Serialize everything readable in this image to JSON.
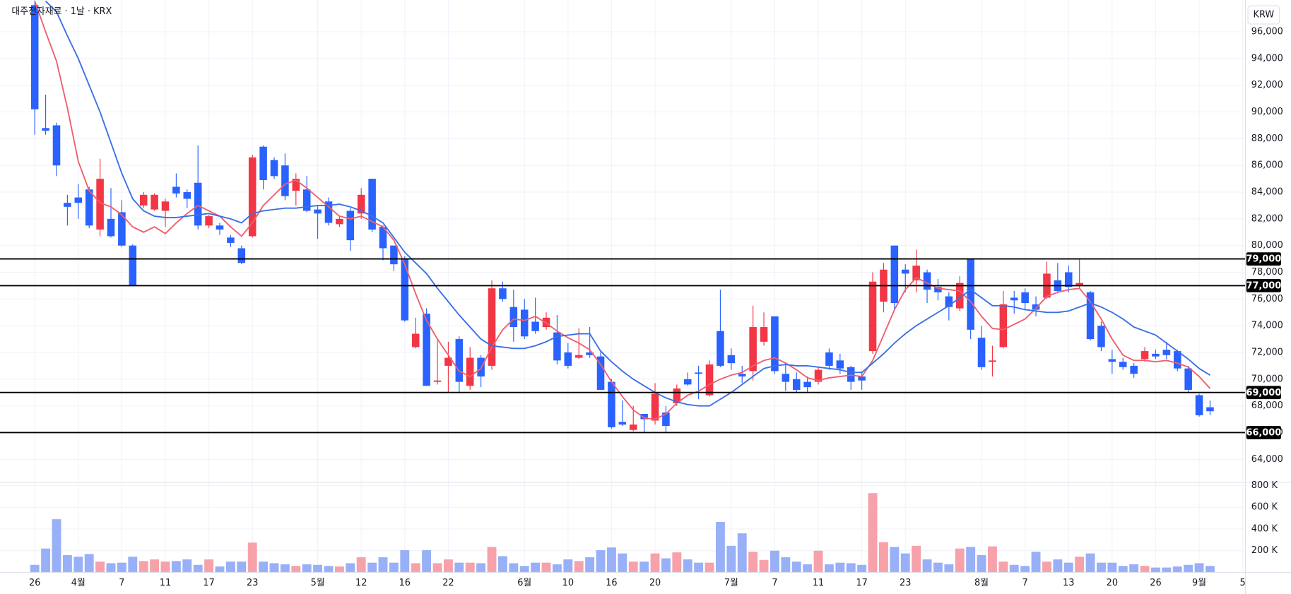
{
  "chart_data": {
    "type": "candlestick",
    "title": "대주전자재료 · 1날 · KRX",
    "currency": "KRW",
    "up_color": "#f23645",
    "down_color": "#2962ff",
    "volume_up_color": "#f7a1aa",
    "volume_down_color": "#98b0f7",
    "grid": true,
    "categories": [
      "26",
      null,
      null,
      null,
      "4월",
      null,
      null,
      null,
      "7",
      null,
      null,
      null,
      "11",
      null,
      null,
      null,
      "17",
      null,
      null,
      null,
      "23",
      null,
      null,
      null,
      null,
      null,
      "5월",
      null,
      null,
      null,
      "12",
      null,
      null,
      null,
      "16",
      null,
      null,
      null,
      "22",
      null,
      null,
      null,
      null,
      null,
      null,
      "6월",
      null,
      null,
      null,
      "10",
      null,
      null,
      null,
      "16",
      null,
      null,
      null,
      "20",
      null,
      null,
      null,
      null,
      null,
      null,
      "7월",
      null,
      null,
      null,
      "7",
      null,
      null,
      null,
      "11",
      null,
      null,
      null,
      "17",
      null,
      null,
      null,
      "23",
      null,
      null,
      null,
      null,
      null,
      null,
      "8월",
      null,
      null,
      null,
      "7",
      null,
      null,
      null,
      "13",
      null,
      null,
      null,
      "20",
      null,
      null,
      null,
      "26",
      null,
      null,
      null,
      "9월",
      null,
      null,
      null,
      "5"
    ],
    "open": [
      98000,
      88800,
      89000,
      83200,
      83600,
      84200,
      81200,
      82000,
      82500,
      80000,
      83000,
      82700,
      82600,
      84400,
      84000,
      84700,
      81500,
      81500,
      80600,
      79800,
      80700,
      87400,
      86400,
      86000,
      84100,
      84200,
      82700,
      83300,
      81600,
      82600,
      82400,
      85000,
      81400,
      80000,
      79000,
      72400,
      74900,
      69800,
      71000,
      73000,
      69500,
      71600,
      71000,
      76800,
      75400,
      75200,
      74300,
      73900,
      73500,
      72000,
      71600,
      72000,
      71700,
      69800,
      66800,
      66200,
      67400,
      66900,
      67500,
      68200,
      70000,
      70500,
      68800,
      73600,
      71800,
      70400,
      70600,
      72800,
      74700,
      70400,
      70000,
      69800,
      69800,
      72000,
      71400,
      70900,
      70200,
      72100,
      75800,
      80000,
      78200,
      77400,
      78000,
      76900,
      76200,
      75300,
      79000,
      73100,
      71300,
      72400,
      76100,
      76500,
      75600,
      76100,
      77400,
      78000,
      77000,
      76500,
      74000,
      71500,
      71300,
      71000,
      71500,
      71900,
      72200,
      72100,
      70800,
      68800,
      67900,
      null,
      null,
      null
    ],
    "high": [
      98350,
      91300,
      89200,
      83800,
      84600,
      84400,
      86500,
      84300,
      83400,
      80100,
      84000,
      83900,
      83500,
      85400,
      84200,
      87500,
      82300,
      81700,
      80800,
      80000,
      86800,
      87500,
      86600,
      86900,
      85400,
      85200,
      83000,
      83600,
      82200,
      82800,
      84300,
      85000,
      81500,
      80000,
      79200,
      74600,
      75300,
      72900,
      72800,
      73200,
      72400,
      71800,
      77400,
      77300,
      76700,
      76000,
      76100,
      75000,
      74800,
      72700,
      73800,
      73900,
      72000,
      70000,
      68400,
      68000,
      67400,
      69700,
      68000,
      69600,
      70500,
      71000,
      71400,
      76700,
      72300,
      71000,
      75500,
      75000,
      74700,
      71200,
      70500,
      70200,
      70900,
      72300,
      71900,
      71000,
      70600,
      78000,
      78700,
      80000,
      78600,
      79700,
      78200,
      77500,
      76500,
      77700,
      79000,
      74000,
      72500,
      76600,
      76600,
      76800,
      76200,
      78800,
      78700,
      78500,
      79000,
      76600,
      74300,
      72200,
      71600,
      71200,
      72400,
      72200,
      72800,
      72200,
      71000,
      68900,
      68400,
      null,
      null,
      null
    ],
    "low": [
      88300,
      88300,
      85200,
      81500,
      82000,
      81300,
      80700,
      80600,
      79900,
      77000,
      82800,
      82600,
      81400,
      83600,
      82800,
      81200,
      81300,
      80800,
      79900,
      78600,
      80600,
      84200,
      85000,
      83400,
      83000,
      82500,
      80500,
      81500,
      81400,
      79600,
      82000,
      81000,
      78900,
      78100,
      74300,
      72300,
      69500,
      69600,
      69000,
      69000,
      69200,
      69400,
      70700,
      75800,
      72800,
      73000,
      73400,
      73700,
      71100,
      70800,
      71500,
      71600,
      69200,
      66300,
      66500,
      66100,
      66000,
      66600,
      66000,
      68000,
      69500,
      68500,
      68700,
      70900,
      70700,
      69700,
      69900,
      72500,
      70400,
      69100,
      69000,
      69000,
      69600,
      70700,
      70400,
      69200,
      69200,
      71900,
      75000,
      75200,
      76500,
      76500,
      75700,
      75900,
      74400,
      75100,
      73000,
      70700,
      70200,
      72300,
      74900,
      75200,
      74700,
      76000,
      76500,
      76500,
      76800,
      72900,
      72100,
      70400,
      70700,
      70100,
      71300,
      71500,
      71500,
      70600,
      69000,
      67200,
      67300,
      null,
      null,
      null
    ],
    "close": [
      90200,
      88600,
      86000,
      82900,
      83200,
      81500,
      85000,
      80700,
      80000,
      77000,
      83800,
      83800,
      83300,
      83900,
      83500,
      81500,
      82200,
      81200,
      80200,
      78700,
      86600,
      84900,
      85200,
      83700,
      85000,
      82600,
      82400,
      81700,
      82000,
      80400,
      83800,
      81200,
      79800,
      78600,
      74400,
      73400,
      69500,
      69900,
      71600,
      69800,
      71600,
      70200,
      76800,
      76000,
      73900,
      73200,
      73600,
      74600,
      71400,
      71000,
      71800,
      71800,
      69200,
      66400,
      66600,
      66600,
      67000,
      68900,
      66500,
      69300,
      69600,
      70400,
      71100,
      71000,
      71200,
      70200,
      73900,
      73900,
      70600,
      69800,
      69200,
      69400,
      70700,
      71000,
      70800,
      69800,
      69900,
      77300,
      78200,
      75700,
      77900,
      78500,
      76700,
      76500,
      75400,
      77200,
      73700,
      70900,
      71400,
      75600,
      75900,
      75700,
      75200,
      77900,
      76600,
      76900,
      77200,
      73000,
      72400,
      71300,
      70900,
      70400,
      72100,
      71700,
      71800,
      70800,
      69200,
      67300,
      67600,
      null,
      null,
      null
    ],
    "volume": [
      70000,
      220000,
      490000,
      160000,
      145000,
      170000,
      100000,
      85000,
      90000,
      145000,
      105000,
      120000,
      100000,
      105000,
      120000,
      70000,
      120000,
      55000,
      100000,
      100000,
      275000,
      100000,
      85000,
      75000,
      60000,
      75000,
      70000,
      60000,
      55000,
      85000,
      140000,
      90000,
      140000,
      90000,
      205000,
      85000,
      205000,
      85000,
      120000,
      90000,
      90000,
      85000,
      235000,
      150000,
      85000,
      60000,
      90000,
      90000,
      75000,
      120000,
      105000,
      140000,
      205000,
      230000,
      175000,
      100000,
      100000,
      175000,
      130000,
      185000,
      120000,
      90000,
      90000,
      465000,
      245000,
      360000,
      190000,
      115000,
      200000,
      140000,
      100000,
      75000,
      200000,
      75000,
      90000,
      85000,
      70000,
      730000,
      280000,
      235000,
      175000,
      245000,
      120000,
      90000,
      75000,
      220000,
      235000,
      160000,
      240000,
      100000,
      70000,
      60000,
      190000,
      100000,
      120000,
      90000,
      145000,
      175000,
      90000,
      90000,
      60000,
      75000,
      60000,
      45000,
      45000,
      55000,
      70000,
      85000,
      60000,
      null,
      null,
      null
    ],
    "ma_lines": [
      {
        "color": "#ef5f6d",
        "values": [
          98300,
          96000,
          93800,
          90300,
          86300,
          84100,
          83200,
          82900,
          82300,
          81400,
          81000,
          81400,
          80900,
          81700,
          82400,
          83000,
          82600,
          82200,
          81400,
          80700,
          81700,
          83000,
          83800,
          84600,
          84900,
          84300,
          83600,
          82900,
          82200,
          82000,
          82200,
          81800,
          81400,
          80400,
          78600,
          76400,
          74400,
          73000,
          71800,
          70600,
          70200,
          70800,
          72400,
          73700,
          74500,
          74400,
          74700,
          74200,
          73600,
          73100,
          72700,
          72200,
          71100,
          69800,
          68700,
          67700,
          67100,
          67000,
          67400,
          68200,
          68800,
          69100,
          69600,
          70000,
          70300,
          70500,
          71000,
          71400,
          71600,
          71200,
          70700,
          70100,
          69900,
          70100,
          70200,
          70300,
          70200,
          71400,
          73300,
          75200,
          76700,
          77600,
          77200,
          76800,
          76700,
          76600,
          75800,
          74700,
          73800,
          73700,
          74100,
          74500,
          75300,
          76200,
          76500,
          76700,
          76800,
          75800,
          74500,
          73000,
          71800,
          71400,
          71400,
          71300,
          71400,
          71200,
          70900,
          70200,
          69300,
          null,
          null,
          null
        ]
      },
      {
        "color": "#3b6fe6",
        "values": [
          null,
          98300,
          97500,
          95700,
          94000,
          92000,
          90000,
          87700,
          85400,
          83500,
          82600,
          82200,
          82100,
          82100,
          82200,
          82300,
          82400,
          82200,
          82000,
          81700,
          82400,
          82600,
          82700,
          82800,
          82800,
          82900,
          83000,
          83000,
          83100,
          82900,
          82600,
          82200,
          81700,
          80600,
          79500,
          78700,
          77900,
          76800,
          75800,
          74800,
          73900,
          73000,
          72500,
          72400,
          72300,
          72300,
          72500,
          72800,
          73200,
          73300,
          73400,
          73400,
          72100,
          71300,
          70600,
          70000,
          69500,
          69000,
          68600,
          68300,
          68100,
          68000,
          68000,
          68500,
          69000,
          69600,
          70200,
          70800,
          71000,
          71100,
          71000,
          71000,
          70900,
          70800,
          70700,
          70500,
          70500,
          71200,
          71900,
          72700,
          73400,
          74000,
          74500,
          75000,
          75500,
          76100,
          76700,
          76100,
          75500,
          75500,
          75400,
          75200,
          75100,
          75000,
          75000,
          75100,
          75400,
          75700,
          75400,
          75000,
          74500,
          73900,
          73600,
          73300,
          72700,
          72100,
          71500,
          70800,
          70300,
          null,
          null,
          null
        ]
      }
    ],
    "ylim": [
      62280,
      98380
    ],
    "yticks": [
      {
        "value": 64000,
        "label": "64,000"
      },
      {
        "value": 66000,
        "label": "66,000"
      },
      {
        "value": 68000,
        "label": "68,000"
      },
      {
        "value": 70000,
        "label": "70,000"
      },
      {
        "value": 72000,
        "label": "72,000"
      },
      {
        "value": 74000,
        "label": "74,000"
      },
      {
        "value": 76000,
        "label": "76,000"
      },
      {
        "value": 78000,
        "label": "78,000"
      },
      {
        "value": 80000,
        "label": "80,000"
      },
      {
        "value": 82000,
        "label": "82,000"
      },
      {
        "value": 84000,
        "label": "84,000"
      },
      {
        "value": 86000,
        "label": "86,000"
      },
      {
        "value": 88000,
        "label": "88,000"
      },
      {
        "value": 90000,
        "label": "90,000"
      },
      {
        "value": 92000,
        "label": "92,000"
      },
      {
        "value": 94000,
        "label": "94,000"
      },
      {
        "value": 96000,
        "label": "96,000"
      }
    ],
    "volume_ylim": [
      0,
      830000
    ],
    "volume_ticks": [
      {
        "value": 200000,
        "label": "200 K"
      },
      {
        "value": 400000,
        "label": "400 K"
      },
      {
        "value": 600000,
        "label": "600 K"
      },
      {
        "value": 800000,
        "label": "800 K"
      }
    ],
    "hlines": [
      {
        "value": 79000,
        "label": "79,000"
      },
      {
        "value": 77000,
        "label": "77,000"
      },
      {
        "value": 69000,
        "label": "69,000"
      },
      {
        "value": 66000,
        "label": "66,000"
      }
    ]
  }
}
